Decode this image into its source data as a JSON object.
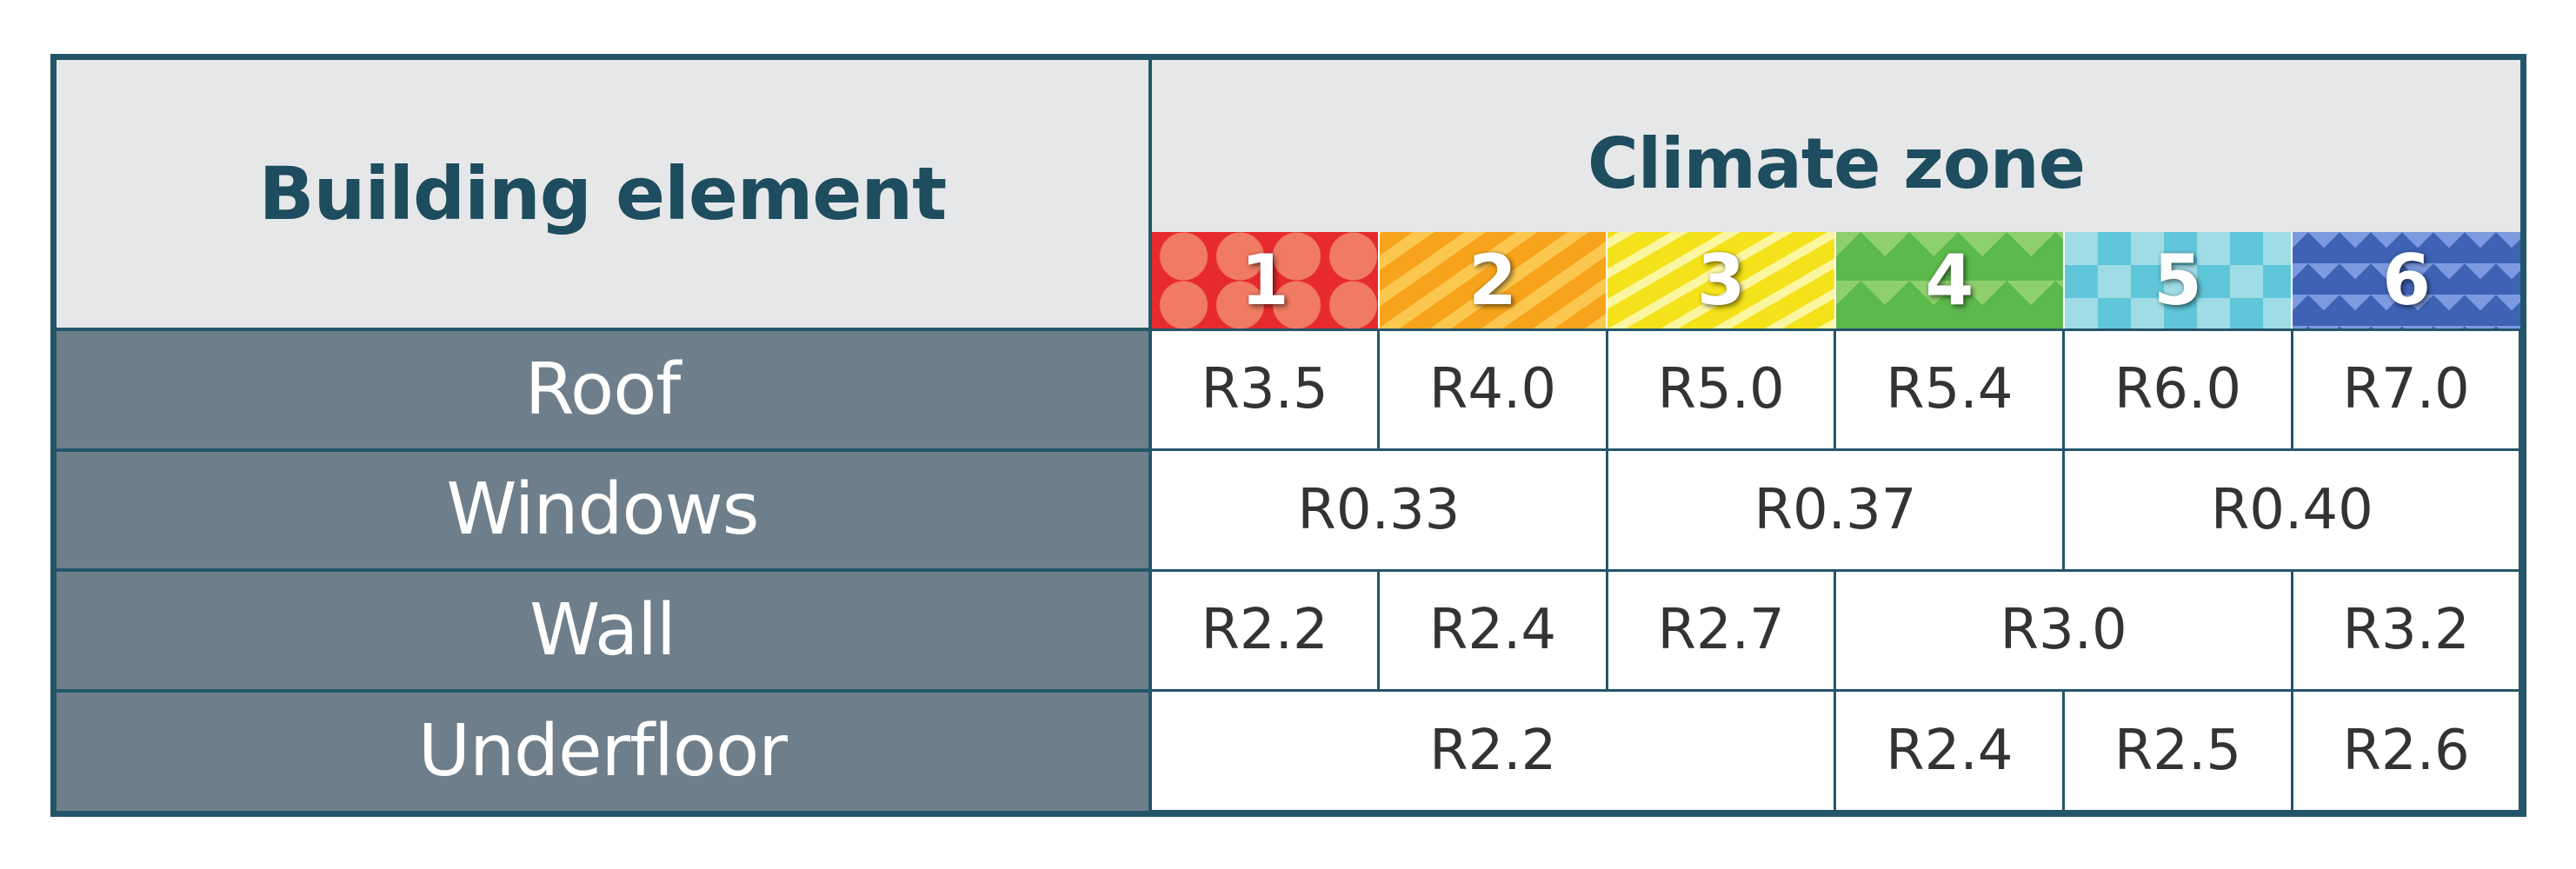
{
  "header": {
    "element_label": "Building element",
    "zone_label": "Climate zone",
    "zones": [
      "1",
      "2",
      "3",
      "4",
      "5",
      "6"
    ]
  },
  "zone_colors": [
    "#e62a2e",
    "#f7a31b",
    "#f9ec1c",
    "#5cb94b",
    "#9fdce6",
    "#3e63b5"
  ],
  "rows": [
    {
      "element": "Roof",
      "cells": [
        "R3.5",
        "R4.0",
        "R5.0",
        "R5.4",
        "R6.0",
        "R7.0"
      ]
    },
    {
      "element": "Windows",
      "cells": [
        "R0.33",
        "R0.37",
        "R0.40"
      ]
    },
    {
      "element": "Wall",
      "cells": [
        "R2.2",
        "R2.4",
        "R2.7",
        "R3.0",
        "R3.2"
      ]
    },
    {
      "element": "Underfloor",
      "cells": [
        "R2.2",
        "R2.4",
        "R2.5",
        "R2.6"
      ]
    }
  ]
}
